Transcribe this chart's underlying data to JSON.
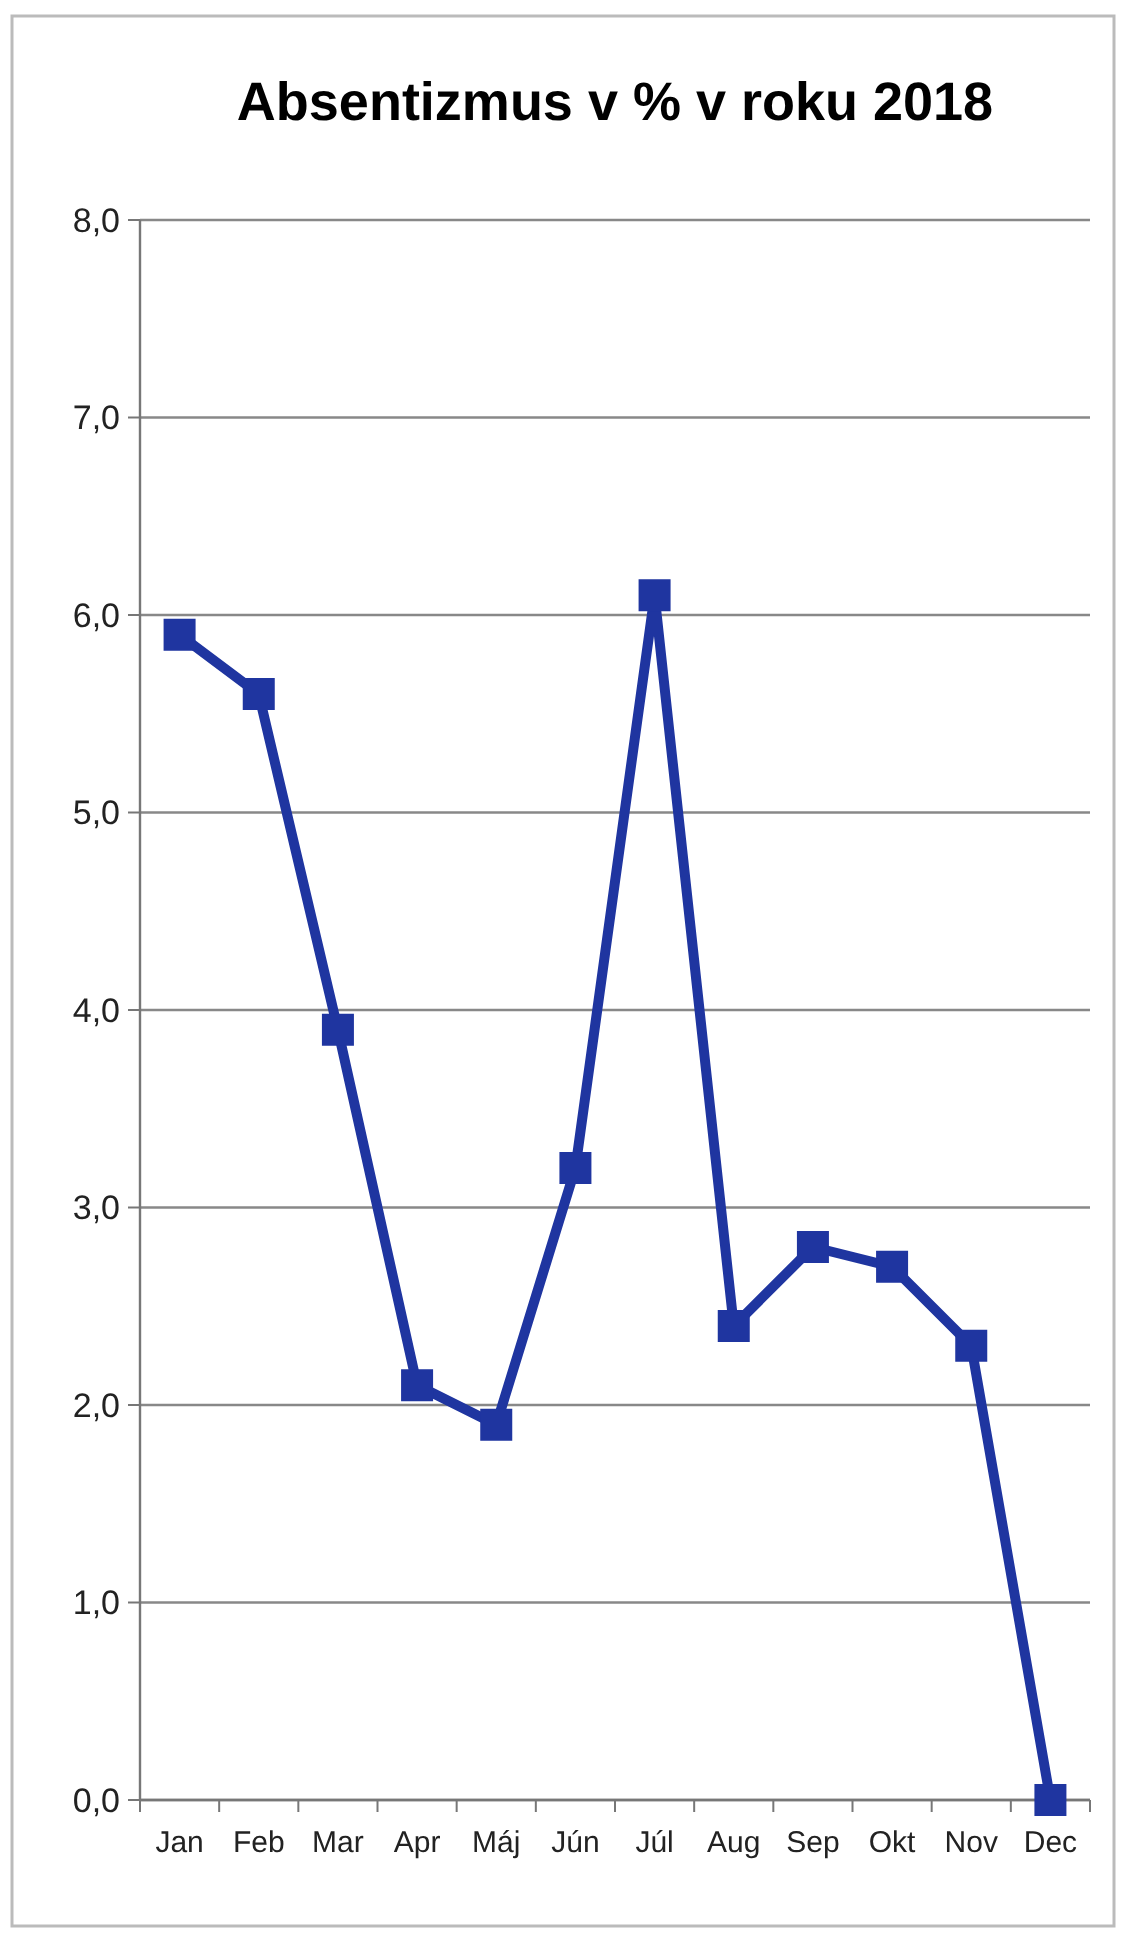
{
  "chart_data": {
    "type": "line",
    "title": "Absentizmus v % v roku 2018",
    "categories": [
      "Jan",
      "Feb",
      "Mar",
      "Apr",
      "Máj",
      "Jún",
      "Júl",
      "Aug",
      "Sep",
      "Okt",
      "Nov",
      "Dec"
    ],
    "series": [
      {
        "color": "#1f35a0",
        "values": [
          5.9,
          5.6,
          3.9,
          2.1,
          1.9,
          3.2,
          6.1,
          2.4,
          2.8,
          2.7,
          2.3,
          0.0
        ]
      }
    ],
    "ylim": [
      0,
      8
    ],
    "yticks": [
      {
        "value": 0,
        "label": "0,0"
      },
      {
        "value": 1,
        "label": "1,0"
      },
      {
        "value": 2,
        "label": "2,0"
      },
      {
        "value": 3,
        "label": "3,0"
      },
      {
        "value": 4,
        "label": "4,0"
      },
      {
        "value": 5,
        "label": "5,0"
      },
      {
        "value": 6,
        "label": "6,0"
      },
      {
        "value": 7,
        "label": "7,0"
      },
      {
        "value": 8,
        "label": "8,0"
      }
    ],
    "grid": "y",
    "marker": "square",
    "line_style": "solid"
  }
}
